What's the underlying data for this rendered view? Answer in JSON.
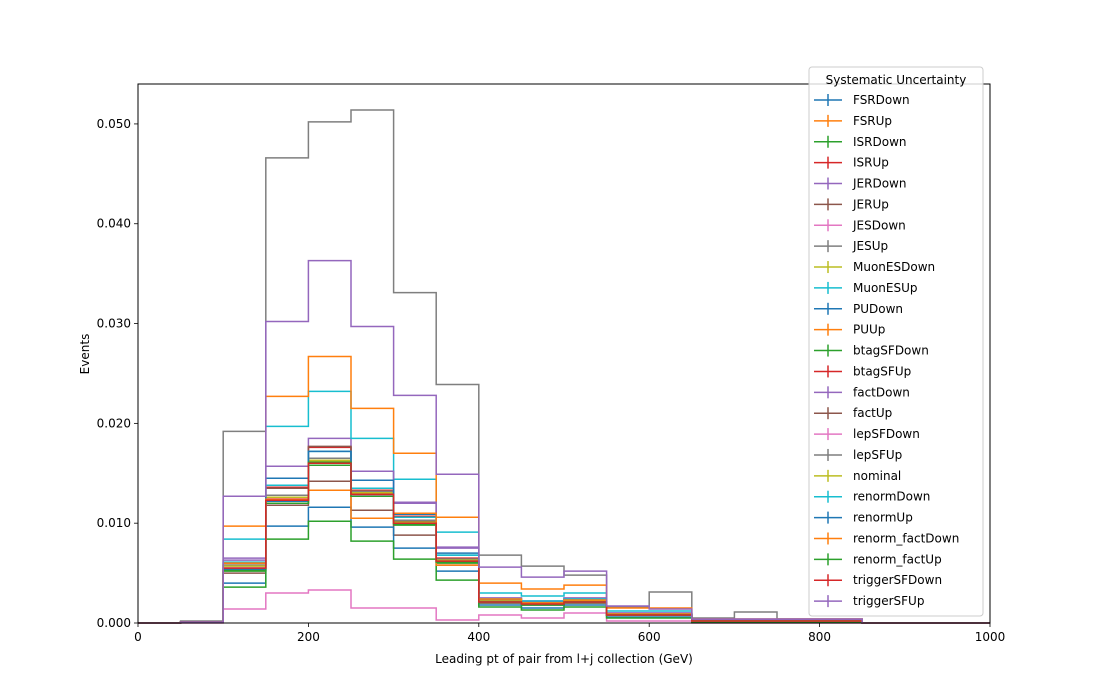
{
  "chart_data": {
    "type": "histogram",
    "xlabel": "Leading pt of pair from l+j collection (GeV)",
    "ylabel": "Events",
    "xlim": [
      0,
      1000
    ],
    "ylim": [
      0,
      0.054
    ],
    "xticks": [
      0,
      200,
      400,
      600,
      800,
      1000
    ],
    "yticks": [
      0.0,
      0.01,
      0.02,
      0.03,
      0.04,
      0.05
    ],
    "ytick_labels": [
      "0.000",
      "0.010",
      "0.020",
      "0.030",
      "0.040",
      "0.050"
    ],
    "grid": false,
    "legend": {
      "title": "Systematic Uncertainty",
      "placement": "top-right"
    },
    "bin_edges": [
      0,
      50,
      100,
      150,
      200,
      250,
      300,
      350,
      400,
      450,
      500,
      550,
      600,
      650,
      700,
      750,
      800,
      850,
      900,
      950,
      1000
    ],
    "series": [
      {
        "name": "FSRDown",
        "color": "#1f77b4",
        "values": [
          0,
          0.0001,
          0.0053,
          0.0122,
          0.0162,
          0.013,
          0.0102,
          0.0068,
          0.0022,
          0.002,
          0.0022,
          0.0008,
          0.0008,
          0.0002,
          0.0002,
          0.0002,
          0.0002,
          0,
          0,
          0
        ]
      },
      {
        "name": "FSRUp",
        "color": "#ff7f0e",
        "values": [
          0,
          0.0001,
          0.0058,
          0.0125,
          0.016,
          0.0128,
          0.01,
          0.0062,
          0.0022,
          0.002,
          0.0022,
          0.0008,
          0.0008,
          0.0002,
          0.0002,
          0.0002,
          0.0002,
          0,
          0,
          0
        ]
      },
      {
        "name": "ISRDown",
        "color": "#2ca02c",
        "values": [
          0,
          0.0001,
          0.0053,
          0.012,
          0.0158,
          0.0127,
          0.0098,
          0.006,
          0.002,
          0.0018,
          0.002,
          0.0008,
          0.0008,
          0.0002,
          0.0002,
          0.0002,
          0.0002,
          0,
          0,
          0
        ]
      },
      {
        "name": "ISRUp",
        "color": "#d62728",
        "values": [
          0,
          0.0001,
          0.0055,
          0.0123,
          0.0161,
          0.013,
          0.01,
          0.0062,
          0.0021,
          0.0019,
          0.0021,
          0.0008,
          0.0008,
          0.0002,
          0.0002,
          0.0002,
          0.0002,
          0,
          0,
          0
        ]
      },
      {
        "name": "JERDown",
        "color": "#9467bd",
        "values": [
          0,
          0.0001,
          0.0063,
          0.0138,
          0.0185,
          0.0152,
          0.012,
          0.0075,
          0.0025,
          0.0022,
          0.0025,
          0.001,
          0.001,
          0.0003,
          0.0003,
          0.0003,
          0.0003,
          0,
          0,
          0
        ]
      },
      {
        "name": "JERUp",
        "color": "#8c564b",
        "values": [
          0,
          0.0001,
          0.005,
          0.0118,
          0.0142,
          0.0113,
          0.0088,
          0.0058,
          0.002,
          0.0018,
          0.002,
          0.0008,
          0.0008,
          0.0002,
          0.0002,
          0.0002,
          0.0002,
          0,
          0,
          0
        ]
      },
      {
        "name": "JESDown",
        "color": "#e377c2",
        "values": [
          0,
          0,
          0.0014,
          0.003,
          0.0033,
          0.0015,
          0.0015,
          0.0003,
          0.0008,
          0.0005,
          0.001,
          0.0002,
          0.0002,
          0,
          0,
          0,
          0,
          0,
          0,
          0
        ]
      },
      {
        "name": "JESUp",
        "color": "#7f7f7f",
        "values": [
          0,
          0.0002,
          0.0192,
          0.0466,
          0.0502,
          0.0514,
          0.0331,
          0.0239,
          0.0068,
          0.0057,
          0.0048,
          0.0016,
          0.0031,
          0.0005,
          0.0011,
          0.0004,
          0.0004,
          0,
          0,
          0
        ]
      },
      {
        "name": "MuonESDown",
        "color": "#bcbd22",
        "values": [
          0,
          0.0001,
          0.0058,
          0.0125,
          0.0163,
          0.0131,
          0.01,
          0.0062,
          0.0022,
          0.002,
          0.0022,
          0.0009,
          0.0009,
          0.0002,
          0.0002,
          0.0002,
          0.0002,
          0,
          0,
          0
        ]
      },
      {
        "name": "MuonESUp",
        "color": "#17becf",
        "values": [
          0,
          0.0001,
          0.0084,
          0.0197,
          0.0232,
          0.0185,
          0.0144,
          0.0091,
          0.003,
          0.0027,
          0.003,
          0.0012,
          0.0012,
          0.0003,
          0.0003,
          0.0003,
          0.0003,
          0,
          0,
          0
        ]
      },
      {
        "name": "PUDown",
        "color": "#1f77b4",
        "values": [
          0,
          0.0001,
          0.004,
          0.0097,
          0.0116,
          0.0096,
          0.0075,
          0.0052,
          0.0018,
          0.0015,
          0.0018,
          0.0006,
          0.0006,
          0.0001,
          0.0001,
          0.0001,
          0.0001,
          0,
          0,
          0
        ]
      },
      {
        "name": "PUUp",
        "color": "#ff7f0e",
        "values": [
          0,
          0.0001,
          0.0097,
          0.0227,
          0.0267,
          0.0215,
          0.017,
          0.0106,
          0.004,
          0.0034,
          0.0038,
          0.0015,
          0.0015,
          0.0004,
          0.0004,
          0.0004,
          0.0004,
          0,
          0,
          0
        ]
      },
      {
        "name": "btagSFDown",
        "color": "#2ca02c",
        "values": [
          0,
          0.0001,
          0.0036,
          0.0084,
          0.0102,
          0.0082,
          0.0064,
          0.0043,
          0.0016,
          0.0013,
          0.0016,
          0.0005,
          0.0005,
          0.0001,
          0.0001,
          0.0001,
          0.0001,
          0,
          0,
          0
        ]
      },
      {
        "name": "btagSFUp",
        "color": "#d62728",
        "values": [
          0,
          0.0001,
          0.006,
          0.0136,
          0.0176,
          0.0133,
          0.0107,
          0.0065,
          0.0023,
          0.0021,
          0.0023,
          0.0009,
          0.0009,
          0.0002,
          0.0002,
          0.0002,
          0.0002,
          0,
          0,
          0
        ]
      },
      {
        "name": "factDown",
        "color": "#9467bd",
        "values": [
          0,
          0.0001,
          0.0065,
          0.0157,
          0.0162,
          0.0152,
          0.0121,
          0.0076,
          0.0025,
          0.0022,
          0.0025,
          0.001,
          0.001,
          0.0003,
          0.0003,
          0.0003,
          0.0003,
          0,
          0,
          0
        ]
      },
      {
        "name": "factUp",
        "color": "#8c564b",
        "values": [
          0,
          0.0001,
          0.0055,
          0.0135,
          0.0177,
          0.0127,
          0.0102,
          0.0064,
          0.0022,
          0.002,
          0.0022,
          0.0009,
          0.0009,
          0.0002,
          0.0002,
          0.0002,
          0.0002,
          0,
          0,
          0
        ]
      },
      {
        "name": "lepSFDown",
        "color": "#e377c2",
        "values": [
          0,
          0.0001,
          0.0055,
          0.0125,
          0.016,
          0.0128,
          0.01,
          0.0062,
          0.0021,
          0.0019,
          0.0021,
          0.0008,
          0.0008,
          0.0002,
          0.0002,
          0.0002,
          0.0002,
          0,
          0,
          0
        ]
      },
      {
        "name": "lepSFUp",
        "color": "#7f7f7f",
        "values": [
          0,
          0.0001,
          0.0058,
          0.0128,
          0.0165,
          0.0132,
          0.0103,
          0.0064,
          0.0022,
          0.002,
          0.0022,
          0.0009,
          0.0009,
          0.0002,
          0.0002,
          0.0002,
          0.0002,
          0,
          0,
          0
        ]
      },
      {
        "name": "nominal",
        "color": "#bcbd22",
        "values": [
          0,
          0.0001,
          0.0057,
          0.0126,
          0.0162,
          0.013,
          0.0101,
          0.0063,
          0.0022,
          0.002,
          0.0022,
          0.0009,
          0.0009,
          0.0002,
          0.0002,
          0.0002,
          0.0002,
          0,
          0,
          0
        ]
      },
      {
        "name": "renormDown",
        "color": "#17becf",
        "values": [
          0,
          0.0001,
          0.0061,
          0.0138,
          0.0172,
          0.0135,
          0.0106,
          0.0068,
          0.0024,
          0.0022,
          0.0024,
          0.0009,
          0.0009,
          0.0002,
          0.0002,
          0.0002,
          0.0002,
          0,
          0,
          0
        ]
      },
      {
        "name": "renormUp",
        "color": "#1f77b4",
        "values": [
          0,
          0.0001,
          0.0054,
          0.0145,
          0.0172,
          0.0143,
          0.0109,
          0.007,
          0.0021,
          0.0019,
          0.0021,
          0.0008,
          0.0008,
          0.0002,
          0.0002,
          0.0002,
          0.0002,
          0,
          0,
          0
        ]
      },
      {
        "name": "renorm_factDown",
        "color": "#ff7f0e",
        "values": [
          0,
          0.0001,
          0.006,
          0.0124,
          0.0133,
          0.0105,
          0.011,
          0.0058,
          0.0024,
          0.002,
          0.0023,
          0.0009,
          0.0009,
          0.0002,
          0.0002,
          0.0002,
          0.0002,
          0,
          0,
          0
        ]
      },
      {
        "name": "renorm_factUp",
        "color": "#2ca02c",
        "values": [
          0,
          0.0001,
          0.0052,
          0.012,
          0.0161,
          0.0127,
          0.0099,
          0.0061,
          0.0021,
          0.0018,
          0.0021,
          0.0008,
          0.0008,
          0.0002,
          0.0002,
          0.0002,
          0.0002,
          0,
          0,
          0
        ]
      },
      {
        "name": "triggerSFDown",
        "color": "#d62728",
        "values": [
          0,
          0.0001,
          0.0055,
          0.0123,
          0.016,
          0.0129,
          0.01,
          0.0062,
          0.0021,
          0.0019,
          0.0021,
          0.0008,
          0.0008,
          0.0002,
          0.0002,
          0.0002,
          0.0002,
          0,
          0,
          0
        ]
      },
      {
        "name": "triggerSFUp",
        "color": "#9467bd",
        "values": [
          0,
          0.0001,
          0.0127,
          0.0302,
          0.0363,
          0.0297,
          0.0228,
          0.0149,
          0.0056,
          0.0046,
          0.0052,
          0.0017,
          0.0014,
          0.0004,
          0.0004,
          0.0004,
          0.0004,
          0,
          0,
          0
        ]
      }
    ]
  }
}
